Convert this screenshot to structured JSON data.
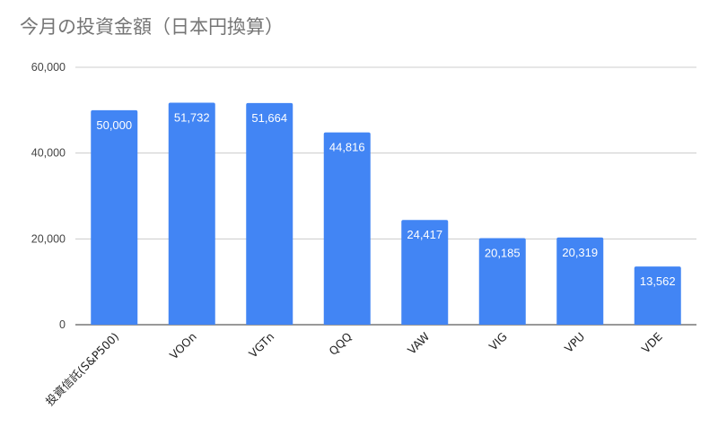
{
  "chart_data": {
    "type": "bar",
    "title": "今月の投資金額（日本円換算）",
    "categories": [
      "投資信託(S&P500)",
      "VOOn",
      "VGTn",
      "QQQ",
      "VAW",
      "VIG",
      "VPU",
      "VDE"
    ],
    "values": [
      50000,
      51732,
      51664,
      44816,
      24417,
      20185,
      20319,
      13562
    ],
    "data_labels": [
      "50,000",
      "51,732",
      "51,664",
      "44,816",
      "24,417",
      "20,185",
      "20,319",
      "13,562"
    ],
    "ylim": [
      0,
      60000
    ],
    "yticks": [
      0,
      20000,
      40000,
      60000
    ],
    "ytick_labels": [
      "0",
      "20,000",
      "40,000",
      "60,000"
    ],
    "xlabel": "",
    "ylabel": "",
    "grid": true,
    "legend": "none",
    "bar_color": "#4285f4"
  }
}
